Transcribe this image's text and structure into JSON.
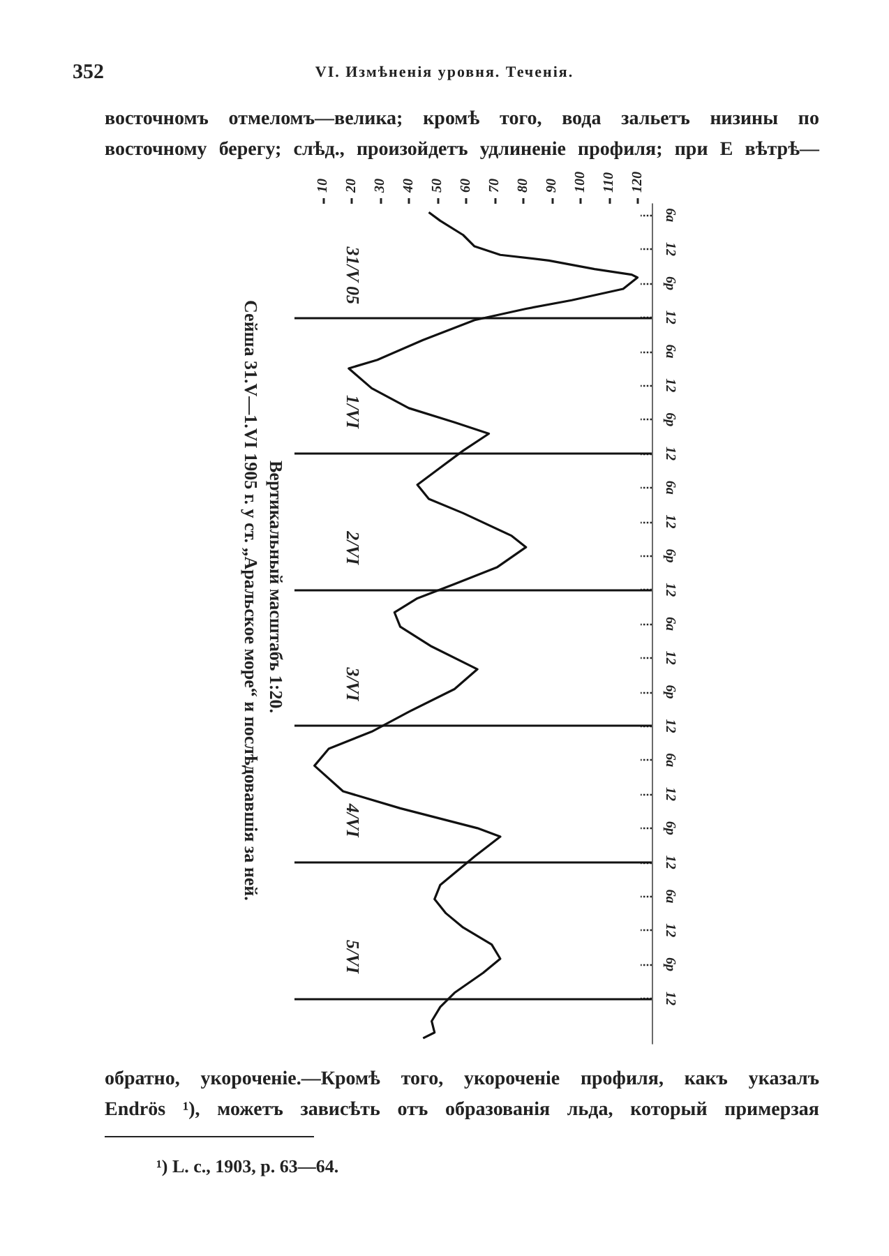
{
  "chart_data": {
    "type": "line",
    "orientation": "horizontal",
    "title": "Сейша 31.V—1.VI 1905 г. у ст. „Аральское море“ и послѣдовавшія за ней.",
    "subtitle": "Вертикальный масштабъ 1:20.",
    "series": [
      {
        "color": "#111111",
        "x": [
          "1905-05-31T05:30",
          "1905-05-31T07:00",
          "1905-05-31T09:30",
          "1905-05-31T11:30",
          "1905-05-31T13:00",
          "1905-05-31T14:00",
          "1905-05-31T15:30",
          "1905-05-31T16:30",
          "1905-05-31T17:00",
          "1905-05-31T19:00",
          "1905-05-31T21:00",
          "1905-05-31T22:30",
          "1905-06-01T00:30",
          "1905-06-01T04:00",
          "1905-06-01T07:30",
          "1905-06-01T09:00",
          "1905-06-01T12:30",
          "1905-06-01T16:00",
          "1905-06-01T18:30",
          "1905-06-01T20:30",
          "1905-06-01T23:30",
          "1905-06-02T02:30",
          "1905-06-02T05:30",
          "1905-06-02T08:00",
          "1905-06-02T10:30",
          "1905-06-02T14:30",
          "1905-06-02T16:30",
          "1905-06-02T20:00",
          "1905-06-02T23:00",
          "1905-06-03T01:30",
          "1905-06-03T04:00",
          "1905-06-03T06:30",
          "1905-06-03T10:00",
          "1905-06-03T14:00",
          "1905-06-03T17:30",
          "1905-06-03T21:30",
          "1905-06-04T01:00",
          "1905-06-04T04:00",
          "1905-06-04T07:00",
          "1905-06-04T11:30",
          "1905-06-04T14:30",
          "1905-06-04T18:00",
          "1905-06-04T19:30",
          "1905-06-04T23:00",
          "1905-06-05T04:00",
          "1905-06-05T06:30",
          "1905-06-05T09:00",
          "1905-06-05T11:30",
          "1905-06-05T14:30",
          "1905-06-05T17:00",
          "1905-06-05T19:30",
          "1905-06-05T23:00",
          "1905-06-06T01:30",
          "1905-06-06T04:00",
          "1905-06-06T06:00",
          "1905-06-06T07:00"
        ],
        "values": [
          47,
          51,
          59,
          63,
          72,
          89,
          105,
          118,
          120,
          115,
          97,
          81,
          63,
          45,
          29,
          19,
          27,
          40,
          56,
          68,
          59,
          51,
          43,
          47,
          59,
          76,
          81,
          71,
          56,
          43,
          35,
          37,
          48,
          64,
          56,
          40,
          27,
          12,
          7,
          17,
          37,
          64,
          72,
          63,
          51,
          49,
          53,
          59,
          69,
          72,
          66,
          56,
          51,
          48,
          49,
          45
        ]
      }
    ],
    "xlim": [
      0,
      125
    ],
    "xticks": [
      10,
      20,
      30,
      40,
      50,
      60,
      70,
      80,
      90,
      100,
      110,
      120
    ],
    "ylim": [
      "1905-06-06T08:00",
      "1905-05-31T04:00"
    ],
    "yticks": [
      {
        "value": "1905-05-31T06:00",
        "label": "6a"
      },
      {
        "value": "1905-05-31T12:00",
        "label": "12"
      },
      {
        "value": "1905-05-31T18:00",
        "label": "6p"
      },
      {
        "value": "1905-06-01T00:00",
        "label": "12"
      },
      {
        "value": "1905-06-01T06:00",
        "label": "6a"
      },
      {
        "value": "1905-06-01T12:00",
        "label": "12"
      },
      {
        "value": "1905-06-01T18:00",
        "label": "6p"
      },
      {
        "value": "1905-06-02T00:00",
        "label": "12"
      },
      {
        "value": "1905-06-02T06:00",
        "label": "6a"
      },
      {
        "value": "1905-06-02T12:00",
        "label": "12"
      },
      {
        "value": "1905-06-02T18:00",
        "label": "6p"
      },
      {
        "value": "1905-06-03T00:00",
        "label": "12"
      },
      {
        "value": "1905-06-03T06:00",
        "label": "6a"
      },
      {
        "value": "1905-06-03T12:00",
        "label": "12"
      },
      {
        "value": "1905-06-03T18:00",
        "label": "6p"
      },
      {
        "value": "1905-06-04T00:00",
        "label": "12"
      },
      {
        "value": "1905-06-04T06:00",
        "label": "6a"
      },
      {
        "value": "1905-06-04T12:00",
        "label": "12"
      },
      {
        "value": "1905-06-04T18:00",
        "label": "6p"
      },
      {
        "value": "1905-06-05T00:00",
        "label": "12"
      },
      {
        "value": "1905-06-05T06:00",
        "label": "6a"
      },
      {
        "value": "1905-06-05T12:00",
        "label": "12"
      },
      {
        "value": "1905-06-05T18:00",
        "label": "6p"
      },
      {
        "value": "1905-06-06T00:00",
        "label": "12"
      }
    ],
    "ref_lines": [
      {
        "axis": "y",
        "value": "1905-06-01T00:00"
      },
      {
        "axis": "y",
        "value": "1905-06-02T00:00"
      },
      {
        "axis": "y",
        "value": "1905-06-03T00:00"
      },
      {
        "axis": "y",
        "value": "1905-06-04T00:00"
      },
      {
        "axis": "y",
        "value": "1905-06-05T00:00"
      },
      {
        "axis": "y",
        "value": "1905-06-06T00:00"
      }
    ],
    "annotations": [
      "352",
      "VI. Измѣненія уровня. Теченія.",
      "восточномъ отмеломъ—велика; кромѣ того, вода зальетъ низины по",
      "восточному берегу; слѣд., произойдетъ удлиненіе профиля; при E вѣтрѣ—",
      "обратно, укороченіе.—Кромѣ того, укороченіе профиля, какъ указалъ",
      "Endrös ¹), можетъ зависѣть отъ образованія льда, который примерзая",
      "¹) L. c., 1903, p. 63—64.",
      "31/V 05",
      "1/VI",
      "2/VI",
      "3/VI",
      "4/VI",
      "5/VI"
    ]
  }
}
